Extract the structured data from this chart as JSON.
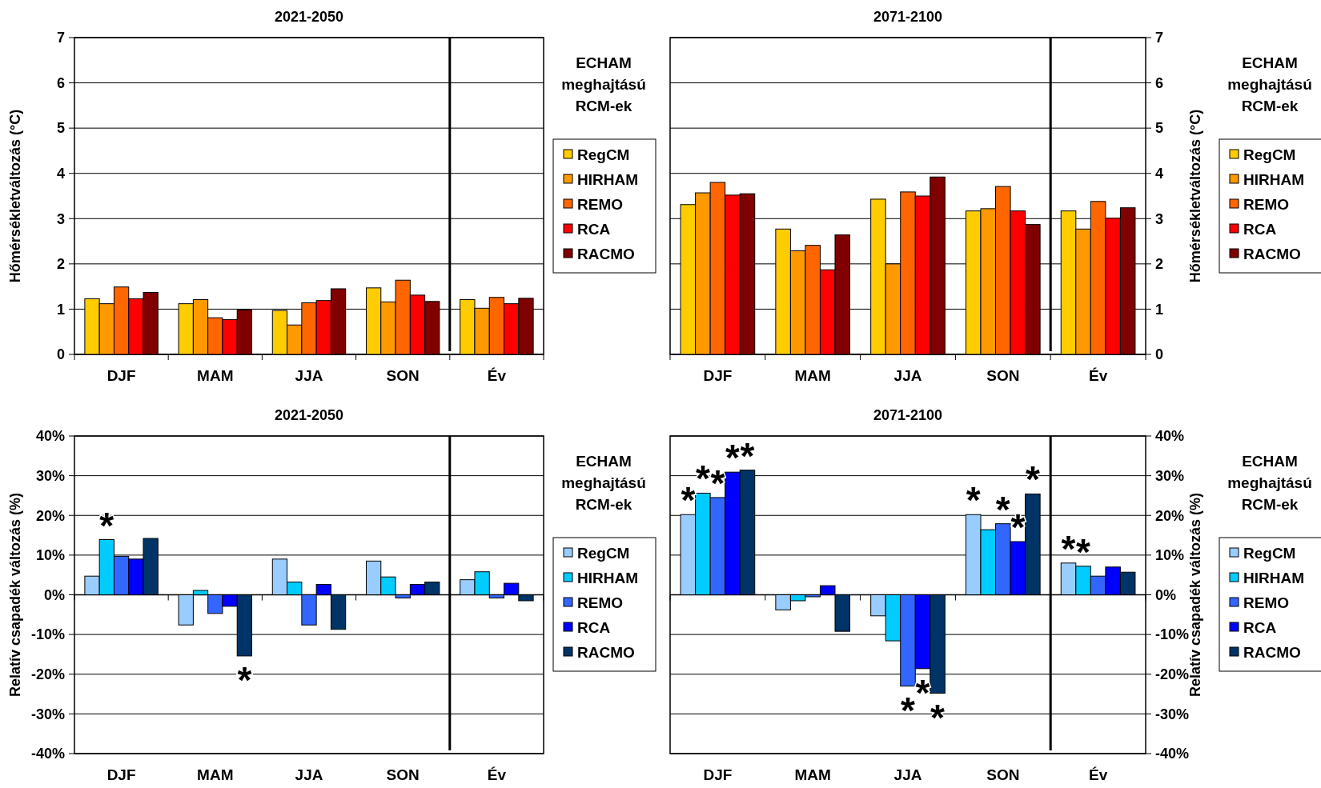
{
  "chart_data": [
    {
      "type": "bar",
      "title": "2021-2050",
      "categories": [
        "DJF",
        "MAM",
        "JJA",
        "SON",
        "Év"
      ],
      "ylabel": "Hőmérsékletváltozás (°C)",
      "ylim": [
        0,
        7
      ],
      "yticks": [
        0,
        1,
        2,
        3,
        4,
        5,
        6,
        7
      ],
      "grid": "y",
      "legend": "right",
      "legend_title": "ECHAM meghajtású RCM-ek",
      "series": [
        {
          "name": "RegCM",
          "color": "#ffcc00",
          "values": [
            1.23,
            1.12,
            0.97,
            1.47,
            1.21
          ]
        },
        {
          "name": "HIRHAM",
          "color": "#ff9900",
          "values": [
            1.12,
            1.21,
            0.65,
            1.16,
            1.02
          ]
        },
        {
          "name": "REMO",
          "color": "#ff6600",
          "values": [
            1.49,
            0.81,
            1.14,
            1.64,
            1.26
          ]
        },
        {
          "name": "RCA",
          "color": "#ff0000",
          "values": [
            1.23,
            0.77,
            1.19,
            1.31,
            1.12
          ]
        },
        {
          "name": "RACMO",
          "color": "#800000",
          "values": [
            1.37,
            0.98,
            1.45,
            1.17,
            1.24
          ]
        }
      ]
    },
    {
      "type": "bar",
      "title": "2071-2100",
      "categories": [
        "DJF",
        "MAM",
        "JJA",
        "SON",
        "Év"
      ],
      "y2label": "Hőmérsékletváltozás (°C)",
      "y2lim": [
        0,
        7
      ],
      "y2ticks": [
        0,
        1,
        2,
        3,
        4,
        5,
        6,
        7
      ],
      "grid": "y",
      "legend": "right",
      "legend_title": "ECHAM meghajtású RCM-ek",
      "series": [
        {
          "name": "RegCM",
          "color": "#ffcc00",
          "axis": "y2",
          "values": [
            3.31,
            2.77,
            3.43,
            3.17,
            3.17
          ]
        },
        {
          "name": "HIRHAM",
          "color": "#ff9900",
          "axis": "y2",
          "values": [
            3.57,
            2.29,
            2.0,
            3.22,
            2.77
          ]
        },
        {
          "name": "REMO",
          "color": "#ff6600",
          "axis": "y2",
          "values": [
            3.8,
            2.41,
            3.59,
            3.71,
            3.38
          ]
        },
        {
          "name": "RCA",
          "color": "#ff0000",
          "axis": "y2",
          "values": [
            3.52,
            1.87,
            3.5,
            3.17,
            3.01
          ]
        },
        {
          "name": "RACMO",
          "color": "#800000",
          "axis": "y2",
          "values": [
            3.55,
            2.64,
            3.92,
            2.87,
            3.24
          ]
        }
      ]
    },
    {
      "type": "bar",
      "title": "2021-2050",
      "categories": [
        "DJF",
        "MAM",
        "JJA",
        "SON",
        "Év"
      ],
      "ylabel": "Relatív csapadék változás (%)",
      "ylim": [
        -40,
        40
      ],
      "yticks": [
        {
          "value": -40,
          "label": "-40%"
        },
        {
          "value": -30,
          "label": "-30%"
        },
        {
          "value": -20,
          "label": "-20%"
        },
        {
          "value": -10,
          "label": "-10%"
        },
        {
          "value": 0,
          "label": "0%"
        },
        {
          "value": 10,
          "label": "10%"
        },
        {
          "value": 20,
          "label": "20%"
        },
        {
          "value": 30,
          "label": "30%"
        },
        {
          "value": 40,
          "label": "40%"
        }
      ],
      "grid": "y",
      "legend": "right",
      "legend_title": "ECHAM meghajtású RCM-ek",
      "series": [
        {
          "name": "RegCM",
          "color": "#99ccff",
          "values": [
            4.7,
            -7.6,
            9.0,
            8.5,
            3.8
          ]
        },
        {
          "name": "HIRHAM",
          "color": "#00ccff",
          "values": [
            13.9,
            1.1,
            3.2,
            4.5,
            5.8
          ],
          "value_labels": [
            "*",
            null,
            null,
            null,
            null
          ]
        },
        {
          "name": "REMO",
          "color": "#3366ff",
          "values": [
            9.7,
            -4.7,
            -7.6,
            -0.8,
            -0.8
          ]
        },
        {
          "name": "RCA",
          "color": "#0000ff",
          "values": [
            9.0,
            -2.9,
            2.6,
            2.6,
            2.9
          ]
        },
        {
          "name": "RACMO",
          "color": "#003366",
          "values": [
            14.2,
            -15.4,
            -8.7,
            3.2,
            -1.5
          ],
          "value_labels": [
            null,
            "*",
            null,
            null,
            null
          ]
        }
      ]
    },
    {
      "type": "bar",
      "title": "2071-2100",
      "categories": [
        "DJF",
        "MAM",
        "JJA",
        "SON",
        "Év"
      ],
      "y2label": "Relatív csapadék változás (%)",
      "y2lim": [
        -40,
        40
      ],
      "y2ticks": [
        {
          "value": -40,
          "label": "-40%"
        },
        {
          "value": -30,
          "label": "-30%"
        },
        {
          "value": -20,
          "label": "-20%"
        },
        {
          "value": -10,
          "label": "-10%"
        },
        {
          "value": 0,
          "label": "0%"
        },
        {
          "value": 10,
          "label": "10%"
        },
        {
          "value": 20,
          "label": "20%"
        },
        {
          "value": 30,
          "label": "30%"
        },
        {
          "value": 40,
          "label": "40%"
        }
      ],
      "grid": "y",
      "legend": "right",
      "legend_title": "ECHAM meghajtású RCM-ek",
      "series": [
        {
          "name": "RegCM",
          "color": "#99ccff",
          "axis": "y2",
          "values": [
            20.2,
            -3.8,
            -5.3,
            20.2,
            8.0
          ],
          "value_labels": [
            "*",
            null,
            null,
            "*",
            "*"
          ]
        },
        {
          "name": "HIRHAM",
          "color": "#00ccff",
          "axis": "y2",
          "values": [
            25.6,
            -1.5,
            -11.6,
            16.4,
            7.2
          ],
          "value_labels": [
            "*",
            null,
            null,
            null,
            "*"
          ]
        },
        {
          "name": "REMO",
          "color": "#3366ff",
          "axis": "y2",
          "values": [
            24.5,
            -0.5,
            -23.0,
            17.9,
            4.7
          ],
          "value_labels": [
            "*",
            null,
            "*",
            "*",
            null
          ]
        },
        {
          "name": "RCA",
          "color": "#0000ff",
          "axis": "y2",
          "values": [
            30.9,
            2.3,
            -18.6,
            13.4,
            7.0
          ],
          "value_labels": [
            "*",
            null,
            "*",
            "*",
            null
          ]
        },
        {
          "name": "RACMO",
          "color": "#003366",
          "axis": "y2",
          "values": [
            31.4,
            -9.2,
            -24.8,
            25.4,
            5.7
          ],
          "value_labels": [
            "*",
            null,
            "*",
            "*",
            null
          ]
        }
      ]
    }
  ]
}
